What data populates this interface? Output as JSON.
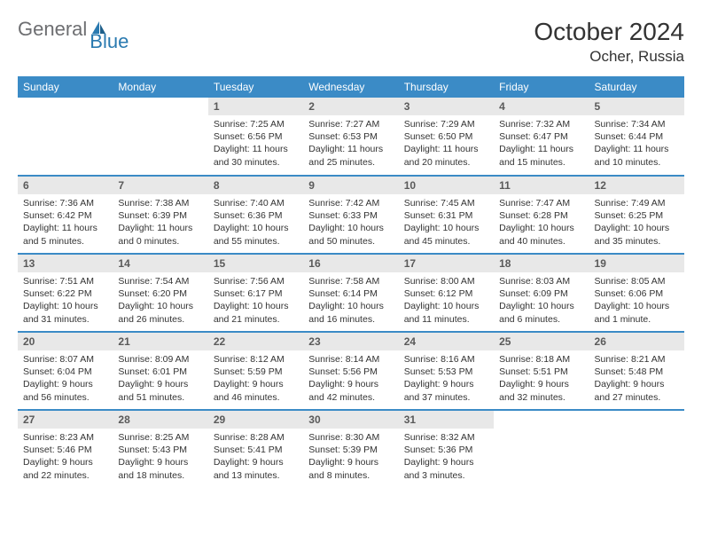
{
  "logo": {
    "part1": "General",
    "part2": "Blue"
  },
  "title": "October 2024",
  "location": "Ocher, Russia",
  "colors": {
    "header_bg": "#3b8bc6",
    "header_text": "#ffffff",
    "daynum_bg": "#e8e8e8",
    "daynum_text": "#5a5a5a",
    "body_text": "#333333",
    "border": "#3b8bc6",
    "logo_gray": "#6d6e71",
    "logo_blue": "#2a7ab0"
  },
  "weekdays": [
    "Sunday",
    "Monday",
    "Tuesday",
    "Wednesday",
    "Thursday",
    "Friday",
    "Saturday"
  ],
  "weeks": [
    [
      null,
      null,
      {
        "d": "1",
        "sr": "7:25 AM",
        "ss": "6:56 PM",
        "dl": "11 hours and 30 minutes."
      },
      {
        "d": "2",
        "sr": "7:27 AM",
        "ss": "6:53 PM",
        "dl": "11 hours and 25 minutes."
      },
      {
        "d": "3",
        "sr": "7:29 AM",
        "ss": "6:50 PM",
        "dl": "11 hours and 20 minutes."
      },
      {
        "d": "4",
        "sr": "7:32 AM",
        "ss": "6:47 PM",
        "dl": "11 hours and 15 minutes."
      },
      {
        "d": "5",
        "sr": "7:34 AM",
        "ss": "6:44 PM",
        "dl": "11 hours and 10 minutes."
      }
    ],
    [
      {
        "d": "6",
        "sr": "7:36 AM",
        "ss": "6:42 PM",
        "dl": "11 hours and 5 minutes."
      },
      {
        "d": "7",
        "sr": "7:38 AM",
        "ss": "6:39 PM",
        "dl": "11 hours and 0 minutes."
      },
      {
        "d": "8",
        "sr": "7:40 AM",
        "ss": "6:36 PM",
        "dl": "10 hours and 55 minutes."
      },
      {
        "d": "9",
        "sr": "7:42 AM",
        "ss": "6:33 PM",
        "dl": "10 hours and 50 minutes."
      },
      {
        "d": "10",
        "sr": "7:45 AM",
        "ss": "6:31 PM",
        "dl": "10 hours and 45 minutes."
      },
      {
        "d": "11",
        "sr": "7:47 AM",
        "ss": "6:28 PM",
        "dl": "10 hours and 40 minutes."
      },
      {
        "d": "12",
        "sr": "7:49 AM",
        "ss": "6:25 PM",
        "dl": "10 hours and 35 minutes."
      }
    ],
    [
      {
        "d": "13",
        "sr": "7:51 AM",
        "ss": "6:22 PM",
        "dl": "10 hours and 31 minutes."
      },
      {
        "d": "14",
        "sr": "7:54 AM",
        "ss": "6:20 PM",
        "dl": "10 hours and 26 minutes."
      },
      {
        "d": "15",
        "sr": "7:56 AM",
        "ss": "6:17 PM",
        "dl": "10 hours and 21 minutes."
      },
      {
        "d": "16",
        "sr": "7:58 AM",
        "ss": "6:14 PM",
        "dl": "10 hours and 16 minutes."
      },
      {
        "d": "17",
        "sr": "8:00 AM",
        "ss": "6:12 PM",
        "dl": "10 hours and 11 minutes."
      },
      {
        "d": "18",
        "sr": "8:03 AM",
        "ss": "6:09 PM",
        "dl": "10 hours and 6 minutes."
      },
      {
        "d": "19",
        "sr": "8:05 AM",
        "ss": "6:06 PM",
        "dl": "10 hours and 1 minute."
      }
    ],
    [
      {
        "d": "20",
        "sr": "8:07 AM",
        "ss": "6:04 PM",
        "dl": "9 hours and 56 minutes."
      },
      {
        "d": "21",
        "sr": "8:09 AM",
        "ss": "6:01 PM",
        "dl": "9 hours and 51 minutes."
      },
      {
        "d": "22",
        "sr": "8:12 AM",
        "ss": "5:59 PM",
        "dl": "9 hours and 46 minutes."
      },
      {
        "d": "23",
        "sr": "8:14 AM",
        "ss": "5:56 PM",
        "dl": "9 hours and 42 minutes."
      },
      {
        "d": "24",
        "sr": "8:16 AM",
        "ss": "5:53 PM",
        "dl": "9 hours and 37 minutes."
      },
      {
        "d": "25",
        "sr": "8:18 AM",
        "ss": "5:51 PM",
        "dl": "9 hours and 32 minutes."
      },
      {
        "d": "26",
        "sr": "8:21 AM",
        "ss": "5:48 PM",
        "dl": "9 hours and 27 minutes."
      }
    ],
    [
      {
        "d": "27",
        "sr": "8:23 AM",
        "ss": "5:46 PM",
        "dl": "9 hours and 22 minutes."
      },
      {
        "d": "28",
        "sr": "8:25 AM",
        "ss": "5:43 PM",
        "dl": "9 hours and 18 minutes."
      },
      {
        "d": "29",
        "sr": "8:28 AM",
        "ss": "5:41 PM",
        "dl": "9 hours and 13 minutes."
      },
      {
        "d": "30",
        "sr": "8:30 AM",
        "ss": "5:39 PM",
        "dl": "9 hours and 8 minutes."
      },
      {
        "d": "31",
        "sr": "8:32 AM",
        "ss": "5:36 PM",
        "dl": "9 hours and 3 minutes."
      },
      null,
      null
    ]
  ],
  "labels": {
    "sunrise": "Sunrise:",
    "sunset": "Sunset:",
    "daylight": "Daylight:"
  }
}
